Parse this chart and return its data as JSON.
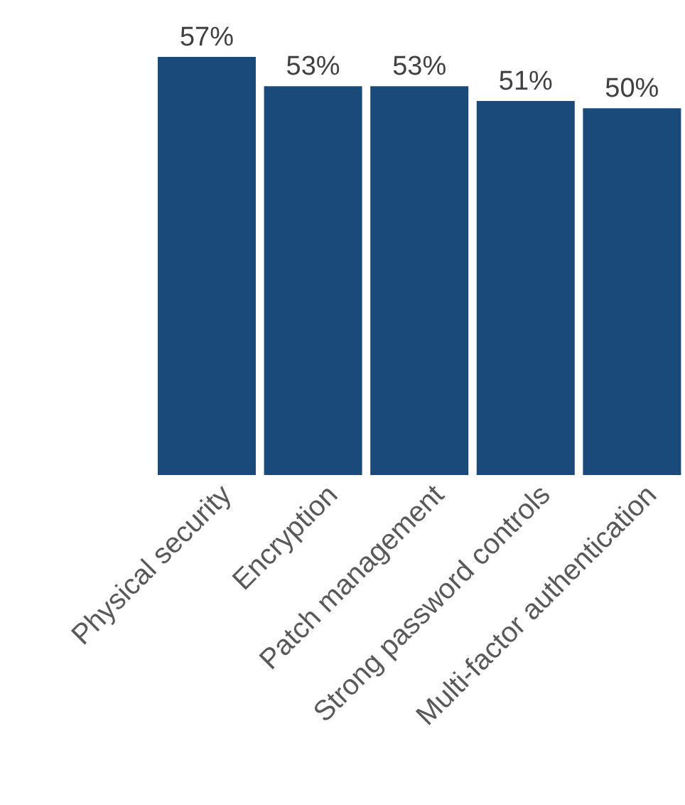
{
  "chart_data": {
    "type": "bar",
    "categories": [
      "Physical security",
      "Encryption",
      "Patch management",
      "Strong password controls",
      "Multi-factor authentication"
    ],
    "values": [
      57,
      53,
      53,
      51,
      50
    ],
    "color": "#1a4a7a",
    "data_labels": true,
    "value_labels": [
      "57%",
      "53%",
      "53%",
      "51%",
      "50%"
    ],
    "grid": false,
    "legend": false
  }
}
